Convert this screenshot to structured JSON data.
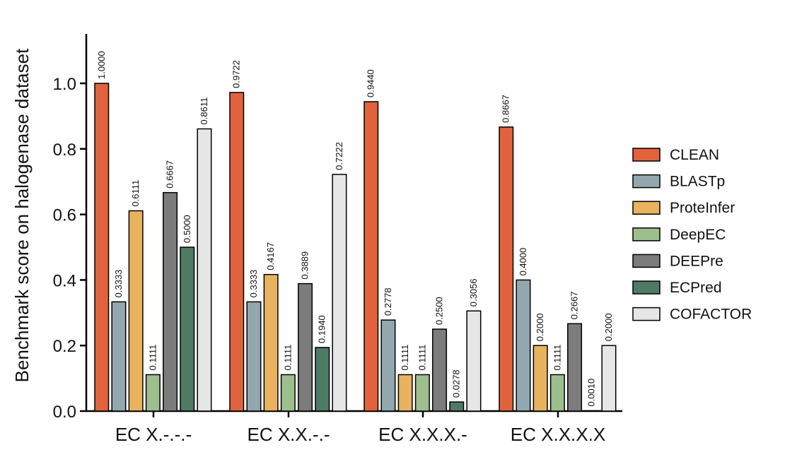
{
  "chart_data": {
    "type": "bar",
    "title": "",
    "xlabel": "",
    "ylabel": "Benchmark score on halogenase dataset",
    "ylim": [
      0,
      1.15
    ],
    "yticks": [
      "0.0",
      "0.2",
      "0.4",
      "0.6",
      "0.8",
      "1.0"
    ],
    "categories": [
      "EC X.-.-.-",
      "EC X.X.-.-",
      "EC X.X.X.-",
      "EC X.X.X.X"
    ],
    "legend_position": "right",
    "series": [
      {
        "name": "CLEAN",
        "color": "#E0633E",
        "values": [
          1.0,
          0.9722,
          0.944,
          0.8667
        ],
        "labels": [
          "1.0000",
          "0.9722",
          "0.9440",
          "0.8667"
        ]
      },
      {
        "name": "BLASTp",
        "color": "#93A7AE",
        "values": [
          0.3333,
          0.3333,
          0.2778,
          0.4
        ],
        "labels": [
          "0.3333",
          "0.3333",
          "0.2778",
          "0.4000"
        ]
      },
      {
        "name": "ProteInfer",
        "color": "#E8B25F",
        "values": [
          0.6111,
          0.4167,
          0.1111,
          0.2
        ],
        "labels": [
          "0.6111",
          "0.4167",
          "0.1111",
          "0.2000"
        ]
      },
      {
        "name": "DeepEC",
        "color": "#9DBF8E",
        "values": [
          0.1111,
          0.1111,
          0.1111,
          0.1111
        ],
        "labels": [
          "0.1111",
          "0.1111",
          "0.1111",
          "0.1111"
        ]
      },
      {
        "name": "DEEPre",
        "color": "#7C7C7C",
        "values": [
          0.6667,
          0.3889,
          0.25,
          0.2667
        ],
        "labels": [
          "0.6667",
          "0.3889",
          "0.2500",
          "0.2667"
        ]
      },
      {
        "name": "ECPred",
        "color": "#4F7A63",
        "values": [
          0.5,
          0.194,
          0.0278,
          0.001
        ],
        "labels": [
          "0.5000",
          "0.1940",
          "0.0278",
          "0.0010"
        ]
      },
      {
        "name": "COFACTOR",
        "color": "#E6E6E6",
        "values": [
          0.8611,
          0.7222,
          0.3056,
          0.2
        ],
        "labels": [
          "0.8611",
          "0.7222",
          "0.3056",
          "0.2000"
        ]
      }
    ]
  }
}
